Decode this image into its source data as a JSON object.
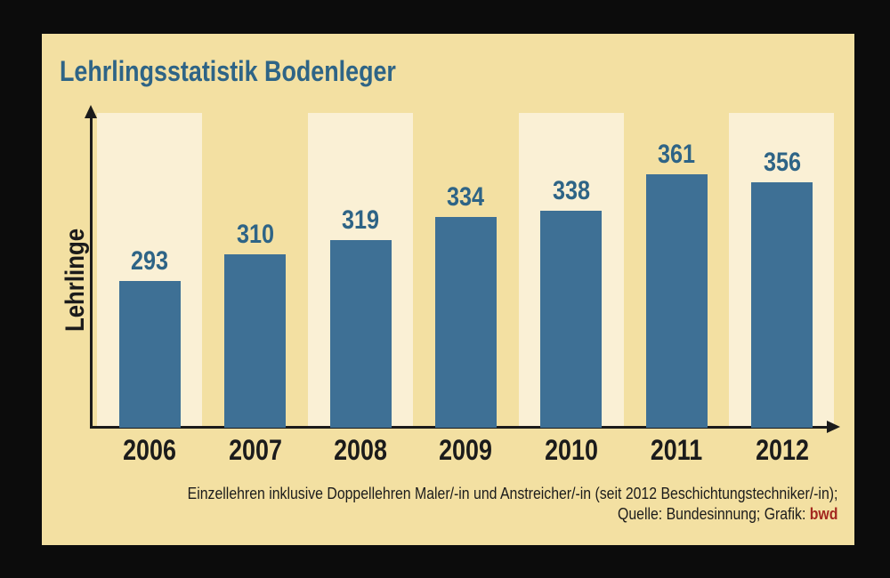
{
  "colors": {
    "outer_background": "#0c0c0c",
    "panel_background": "#f3e0a2",
    "stripe_background": "#faf0d5",
    "bar": "#3e7095",
    "blue_text": "#2e6486",
    "dark_text": "#1b1b1b",
    "credit_red": "#a3271f"
  },
  "chart_data": {
    "type": "bar",
    "title": "Lehrlingsstatistik Bodenleger",
    "categories": [
      "2006",
      "2007",
      "2008",
      "2009",
      "2010",
      "2011",
      "2012"
    ],
    "values": [
      293,
      310,
      319,
      334,
      338,
      361,
      356
    ],
    "xlabel": "",
    "ylabel": "Lehrlinge",
    "ylim": [
      200,
      400
    ],
    "grid": false,
    "legend": "none",
    "data_labels": true,
    "striped_background_columns": [
      0,
      2,
      4,
      6
    ],
    "axis_arrows": true
  },
  "footnote": {
    "line1": "Einzellehren inklusive Doppellehren Maler/-in und Anstreicher/-in (seit 2012 Beschichtungstechniker/-in);",
    "line2_prefix": "Quelle: Bundesinnung; Grafik: ",
    "credit": "bwd"
  }
}
